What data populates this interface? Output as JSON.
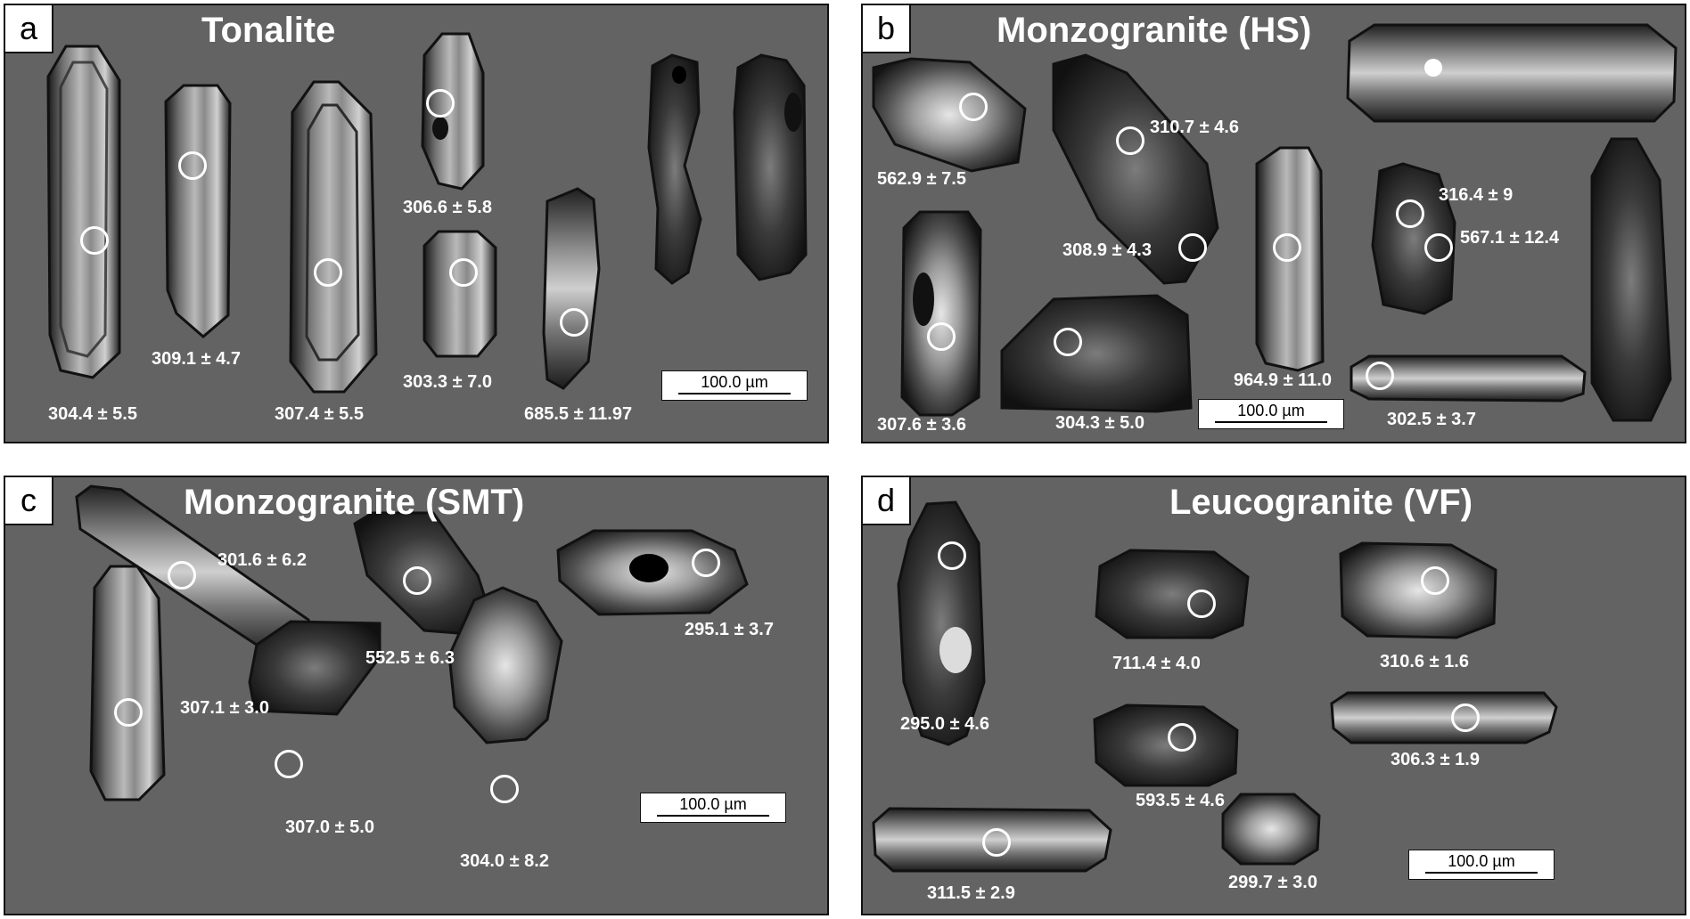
{
  "panels": {
    "a": {
      "letter": "a",
      "title": "Tonalite",
      "scale_bar": "100.0 µm",
      "ages": [
        "304.4 ± 5.5",
        "309.1 ± 4.7",
        "307.4 ± 5.5",
        "306.6 ± 5.8",
        "303.3 ± 7.0",
        "685.5 ± 11.97"
      ]
    },
    "b": {
      "letter": "b",
      "title": "Monzogranite (HS)",
      "scale_bar": "100.0 µm",
      "ages": [
        "562.9 ± 7.5",
        "310.7 ± 4.6",
        "308.9 ± 4.3",
        "316.4 ± 9",
        "567.1 ± 12.4",
        "307.6 ± 3.6",
        "304.3 ± 5.0",
        "964.9 ± 11.0",
        "302.5 ± 3.7"
      ]
    },
    "c": {
      "letter": "c",
      "title": "Monzogranite (SMT)",
      "scale_bar": "100.0 µm",
      "ages": [
        "301.6 ± 6.2",
        "552.5 ± 6.3",
        "295.1 ± 3.7",
        "307.1 ± 3.0",
        "307.0 ± 5.0",
        "304.0 ± 8.2"
      ]
    },
    "d": {
      "letter": "d",
      "title": "Leucogranite (VF)",
      "scale_bar": "100.0 µm",
      "ages": [
        "295.0 ± 4.6",
        "711.4 ± 4.0",
        "310.6 ± 1.6",
        "593.5 ± 4.6",
        "306.3 ± 1.9",
        "311.5 ± 2.9",
        "299.7 ± 3.0"
      ]
    }
  },
  "colors": {
    "panel_background": "#636363",
    "label_text": "#ffffff",
    "analysis_spot": "#ffffff"
  }
}
